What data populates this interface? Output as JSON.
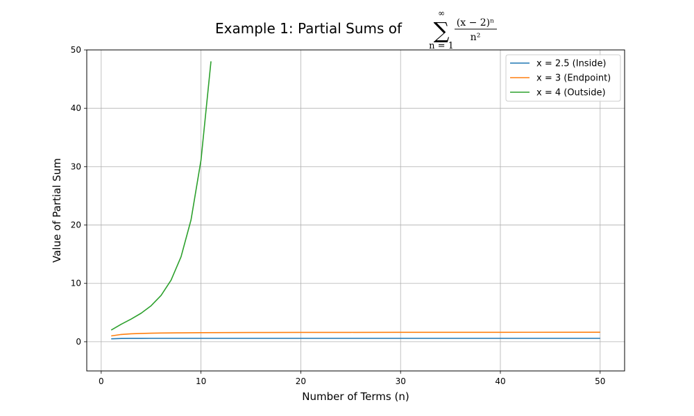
{
  "chart_data": {
    "type": "line",
    "title": {
      "text": "Example 1: Partial Sums of",
      "math": {
        "sum_symbol": "∑",
        "upper": "∞",
        "lower": "n = 1",
        "numerator": "(x − 2)ⁿ",
        "denominator": "n²"
      }
    },
    "xlabel": "Number of Terms (n)",
    "ylabel": "Value of Partial Sum",
    "xlim": [
      -1.45,
      52.45
    ],
    "ylim": [
      -5,
      50
    ],
    "xticks": [
      0,
      10,
      20,
      30,
      40,
      50
    ],
    "yticks": [
      0,
      10,
      20,
      30,
      40,
      50
    ],
    "grid": true,
    "legend_position": "top-right",
    "series": [
      {
        "name": "x = 2.5 (Inside)",
        "color": "#1f77b4",
        "x": [
          1,
          2,
          3,
          4,
          5,
          6,
          8,
          10,
          15,
          20,
          30,
          40,
          50
        ],
        "y": [
          0.5,
          0.5625,
          0.5764,
          0.5803,
          0.5816,
          0.5821,
          0.5823,
          0.5823,
          0.5823,
          0.5823,
          0.5823,
          0.5823,
          0.5823
        ]
      },
      {
        "name": "x = 3 (Endpoint)",
        "color": "#ff7f0e",
        "x": [
          1,
          2,
          3,
          4,
          5,
          6,
          7,
          8,
          10,
          15,
          20,
          25,
          30,
          40,
          50
        ],
        "y": [
          1.0,
          1.25,
          1.3611,
          1.4236,
          1.4636,
          1.4914,
          1.5118,
          1.5274,
          1.5498,
          1.5804,
          1.5962,
          1.6058,
          1.6122,
          1.6202,
          1.6251
        ]
      },
      {
        "name": "x = 4 (Outside)",
        "color": "#2ca02c",
        "x": [
          1,
          2,
          3,
          4,
          5,
          6,
          7,
          8,
          9,
          10,
          11
        ],
        "y": [
          2.0,
          3.0,
          3.8889,
          4.8889,
          6.1689,
          7.9467,
          10.559,
          14.559,
          20.88,
          31.12,
          48.05
        ]
      }
    ]
  }
}
